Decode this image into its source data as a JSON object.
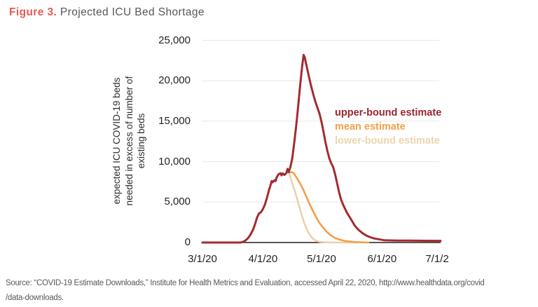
{
  "title": {
    "figure_label": "Figure 3.",
    "text": " Projected ICU Bed Shortage"
  },
  "colors": {
    "figure_label": "#e8584f",
    "title_text": "#55575a",
    "axis_text": "#231f20",
    "grid_line": "#e8e8e8",
    "axis_line": "#231f20",
    "upper_bound": "#a32b30",
    "upper_bound_legend": "#9b2531",
    "mean": "#f0a148",
    "lower_bound": "#e9d2ac",
    "source_text": "#58595b"
  },
  "source": {
    "line1": "Source: “COVID-19 Estimate Downloads,” Institute for Health Metrics and Evaluation, accessed April 22, 2020, http://www.healthdata.org/covid",
    "line2": "/data-downloads."
  },
  "chart_data": {
    "type": "line",
    "title": "Projected ICU Bed Shortage",
    "ylabel_lines": [
      "expected ICU COVID-19 beds",
      "needed in excess of number of",
      "existing beds"
    ],
    "xlabel": "",
    "ylim": [
      0,
      25000
    ],
    "ytick_values": [
      0,
      5000,
      10000,
      15000,
      20000,
      25000
    ],
    "ytick_labels": [
      "0",
      "5,000",
      "10,000",
      "15,000",
      "20,000",
      "25,000"
    ],
    "x_unit": "days since 3/1/2020",
    "xlim_days": [
      0,
      122
    ],
    "xtick_days": [
      0,
      31,
      61,
      92,
      122
    ],
    "xtick_labels": [
      "3/1/20",
      "4/1/20",
      "5/1/20",
      "6/1/20",
      "7/1/2"
    ],
    "grid": "horizontal",
    "legend_position": "right-inside",
    "legend": [
      {
        "label": "upper-bound estimate",
        "color": "#9b2531"
      },
      {
        "label": "mean estimate",
        "color": "#f0a148"
      },
      {
        "label": "lower-bound estimate",
        "color": "#ecd5ae"
      }
    ],
    "series": [
      {
        "name": "lower-bound estimate",
        "color": "#e9d2ac",
        "points": [
          [
            0,
            0
          ],
          [
            10,
            0
          ],
          [
            16,
            0
          ],
          [
            19,
            0
          ],
          [
            20,
            30
          ],
          [
            21,
            100
          ],
          [
            22,
            250
          ],
          [
            23,
            450
          ],
          [
            24,
            750
          ],
          [
            25,
            1150
          ],
          [
            26,
            1650
          ],
          [
            27,
            2300
          ],
          [
            28,
            3100
          ],
          [
            29,
            3600
          ],
          [
            30,
            3750
          ],
          [
            31,
            4150
          ],
          [
            32,
            4700
          ],
          [
            33,
            5500
          ],
          [
            34,
            6400
          ],
          [
            35,
            7200
          ],
          [
            35.5,
            7600
          ],
          [
            36,
            7450
          ],
          [
            37,
            7700
          ],
          [
            37.5,
            7600
          ],
          [
            38,
            8050
          ],
          [
            39,
            8450
          ],
          [
            40,
            8550
          ],
          [
            40.5,
            8300
          ],
          [
            41,
            8550
          ],
          [
            42,
            8350
          ],
          [
            43,
            8600
          ],
          [
            43.6,
            9100
          ],
          [
            44.2,
            8700
          ],
          [
            44.6,
            8450
          ],
          [
            45,
            8100
          ],
          [
            46,
            7350
          ],
          [
            47,
            6600
          ],
          [
            48,
            5800
          ],
          [
            49,
            5000
          ],
          [
            50,
            4100
          ],
          [
            51,
            3300
          ],
          [
            52,
            2500
          ],
          [
            53,
            1900
          ],
          [
            54,
            1350
          ],
          [
            55,
            950
          ],
          [
            56,
            620
          ],
          [
            57,
            400
          ],
          [
            58,
            250
          ],
          [
            59,
            150
          ],
          [
            60,
            90
          ],
          [
            62,
            40
          ],
          [
            64,
            15
          ],
          [
            66,
            5
          ],
          [
            70,
            0
          ],
          [
            75,
            0
          ],
          [
            80,
            0
          ]
        ]
      },
      {
        "name": "mean estimate",
        "color": "#f0a148",
        "points": [
          [
            0,
            0
          ],
          [
            10,
            0
          ],
          [
            16,
            0
          ],
          [
            19,
            0
          ],
          [
            20,
            30
          ],
          [
            21,
            100
          ],
          [
            22,
            250
          ],
          [
            23,
            450
          ],
          [
            24,
            750
          ],
          [
            25,
            1150
          ],
          [
            26,
            1650
          ],
          [
            27,
            2300
          ],
          [
            28,
            3100
          ],
          [
            29,
            3600
          ],
          [
            30,
            3750
          ],
          [
            31,
            4150
          ],
          [
            32,
            4700
          ],
          [
            33,
            5500
          ],
          [
            34,
            6400
          ],
          [
            35,
            7200
          ],
          [
            35.5,
            7600
          ],
          [
            36,
            7450
          ],
          [
            37,
            7700
          ],
          [
            37.5,
            7600
          ],
          [
            38,
            8050
          ],
          [
            39,
            8450
          ],
          [
            40,
            8550
          ],
          [
            40.5,
            8300
          ],
          [
            41,
            8550
          ],
          [
            42,
            8350
          ],
          [
            43,
            8600
          ],
          [
            43.6,
            9100
          ],
          [
            44.2,
            8700
          ],
          [
            45,
            8650
          ],
          [
            46,
            8700
          ],
          [
            47,
            8500
          ],
          [
            48,
            8100
          ],
          [
            49,
            7700
          ],
          [
            50,
            7300
          ],
          [
            51,
            6850
          ],
          [
            52,
            6350
          ],
          [
            53,
            5800
          ],
          [
            54,
            5250
          ],
          [
            55,
            4700
          ],
          [
            56,
            4200
          ],
          [
            57,
            3700
          ],
          [
            58,
            3250
          ],
          [
            59,
            2800
          ],
          [
            60,
            2400
          ],
          [
            61,
            2100
          ],
          [
            62,
            1800
          ],
          [
            63,
            1500
          ],
          [
            64,
            1250
          ],
          [
            65,
            1030
          ],
          [
            66,
            850
          ],
          [
            67,
            700
          ],
          [
            68,
            560
          ],
          [
            69,
            460
          ],
          [
            70,
            380
          ],
          [
            71,
            310
          ],
          [
            72,
            250
          ],
          [
            73,
            200
          ],
          [
            74,
            160
          ],
          [
            76,
            110
          ],
          [
            78,
            70
          ],
          [
            80,
            45
          ],
          [
            83,
            20
          ],
          [
            85,
            10
          ]
        ]
      },
      {
        "name": "upper-bound estimate",
        "color": "#a32b30",
        "points": [
          [
            0,
            0
          ],
          [
            10,
            0
          ],
          [
            16,
            0
          ],
          [
            19,
            0
          ],
          [
            20,
            30
          ],
          [
            21,
            100
          ],
          [
            22,
            250
          ],
          [
            23,
            450
          ],
          [
            24,
            750
          ],
          [
            25,
            1150
          ],
          [
            26,
            1650
          ],
          [
            27,
            2300
          ],
          [
            28,
            3100
          ],
          [
            29,
            3600
          ],
          [
            30,
            3750
          ],
          [
            31,
            4150
          ],
          [
            32,
            4700
          ],
          [
            33,
            5500
          ],
          [
            34,
            6400
          ],
          [
            35,
            7200
          ],
          [
            35.5,
            7600
          ],
          [
            36,
            7450
          ],
          [
            37,
            7700
          ],
          [
            37.5,
            7600
          ],
          [
            38,
            8050
          ],
          [
            39,
            8450
          ],
          [
            40,
            8550
          ],
          [
            40.5,
            8300
          ],
          [
            41,
            8550
          ],
          [
            42,
            8350
          ],
          [
            43,
            8600
          ],
          [
            43.6,
            9100
          ],
          [
            44.2,
            8700
          ],
          [
            45,
            9300
          ],
          [
            46,
            10400
          ],
          [
            47,
            12300
          ],
          [
            48,
            14400
          ],
          [
            49,
            16800
          ],
          [
            50,
            19300
          ],
          [
            51,
            21600
          ],
          [
            51.8,
            23200
          ],
          [
            52.4,
            22900
          ],
          [
            53,
            22200
          ],
          [
            54,
            21100
          ],
          [
            55,
            20000
          ],
          [
            56,
            19000
          ],
          [
            57,
            18100
          ],
          [
            58,
            17300
          ],
          [
            59,
            16600
          ],
          [
            60,
            15900
          ],
          [
            61,
            14900
          ],
          [
            62,
            13700
          ],
          [
            63,
            12400
          ],
          [
            64,
            11300
          ],
          [
            65,
            10400
          ],
          [
            66,
            9800
          ],
          [
            67,
            9300
          ],
          [
            68,
            8400
          ],
          [
            69,
            7300
          ],
          [
            70,
            6200
          ],
          [
            71,
            5300
          ],
          [
            72,
            4700
          ],
          [
            73,
            4200
          ],
          [
            74,
            3700
          ],
          [
            75,
            3300
          ],
          [
            76,
            2900
          ],
          [
            77,
            2500
          ],
          [
            78,
            2100
          ],
          [
            79,
            1800
          ],
          [
            80,
            1550
          ],
          [
            82,
            1150
          ],
          [
            84,
            850
          ],
          [
            86,
            650
          ],
          [
            88,
            500
          ],
          [
            90,
            420
          ],
          [
            92,
            330
          ],
          [
            93,
            290
          ],
          [
            96,
            260
          ],
          [
            100,
            245
          ],
          [
            106,
            230
          ],
          [
            114,
            215
          ],
          [
            122,
            205
          ]
        ]
      }
    ]
  }
}
